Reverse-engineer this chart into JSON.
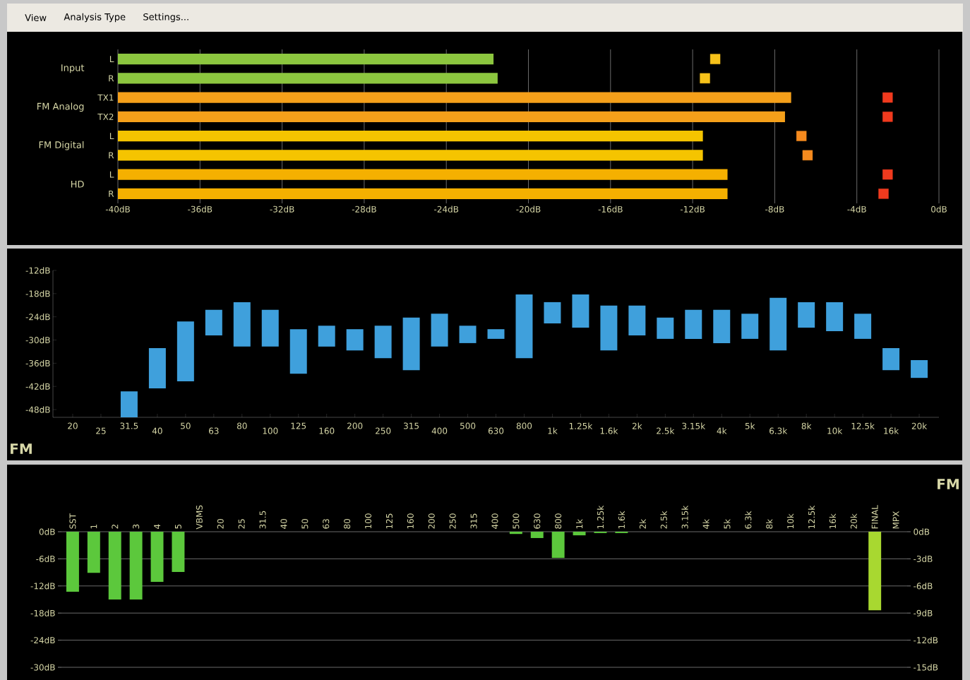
{
  "chart_data": [
    {
      "type": "other",
      "annotations": [
        "View",
        "Analysis Type",
        "Settings..."
      ]
    },
    {
      "type": "bar",
      "orientation": "horizontal",
      "categories": [
        "L",
        "R",
        "TX1",
        "TX2",
        "L",
        "R",
        "L",
        "R"
      ],
      "series": [
        {
          "type": "bar",
          "colors": [
            "#8cc63f",
            "#8cc63f",
            "#f5a01a",
            "#f5a01a",
            "#f5c400",
            "#f5c400",
            "#f5b000",
            "#f5b000"
          ],
          "base": [
            -40,
            -40,
            -40,
            -40,
            -40,
            -40,
            -40,
            -40
          ],
          "values": [
            18.3,
            18.5,
            32.8,
            32.5,
            28.5,
            28.5,
            29.7,
            29.7
          ]
        },
        {
          "type": "scatter",
          "colors": [
            "#f7c21a",
            "#f7c21a",
            "#f03a1e",
            "#f03a1e",
            "#f58a1e",
            "#f58a1e",
            "#f03a1e",
            "#f03a1e"
          ],
          "values": [
            -10.9,
            -11.4,
            -2.5,
            -2.5,
            -6.7,
            -6.4,
            -2.5,
            -2.7
          ]
        }
      ],
      "marker": "square",
      "xlim": [
        -40,
        0
      ],
      "xticks": [
        {
          "value": -40,
          "label": "-40dB"
        },
        {
          "value": -36,
          "label": "-36dB"
        },
        {
          "value": -32,
          "label": "-32dB"
        },
        {
          "value": -28,
          "label": "-28dB"
        },
        {
          "value": -24,
          "label": "-24dB"
        },
        {
          "value": -20,
          "label": "-20dB"
        },
        {
          "value": -16,
          "label": "-16dB"
        },
        {
          "value": -12,
          "label": "-12dB"
        },
        {
          "value": -8,
          "label": "-8dB"
        },
        {
          "value": -4,
          "label": "-4dB"
        },
        {
          "value": 0,
          "label": "0dB"
        }
      ],
      "grid": "x",
      "annotations": [
        "Input",
        "FM Analog",
        "FM Digital",
        "HD"
      ]
    },
    {
      "type": "bar",
      "categories": [
        "20",
        "25",
        "31.5",
        "40",
        "50",
        "63",
        "80",
        "100",
        "125",
        "160",
        "200",
        "250",
        "315",
        "400",
        "500",
        "630",
        "800",
        "1k",
        "1.25k",
        "1.6k",
        "2k",
        "2.5k",
        "3.15k",
        "4k",
        "5k",
        "6.3k",
        "8k",
        "10k",
        "12.5k",
        "16k",
        "20k"
      ],
      "base": [
        null,
        null,
        -50,
        -42.5,
        -40.7,
        -28.8,
        -31.7,
        -31.7,
        -38.7,
        -31.7,
        -32.7,
        -34.7,
        -37.8,
        -31.7,
        -30.8,
        -29.7,
        -34.7,
        -25.7,
        -26.8,
        -32.7,
        -28.8,
        -29.7,
        -29.7,
        -30.8,
        -29.7,
        -32.7,
        -26.8,
        -27.7,
        -29.7,
        -37.8,
        -39.8
      ],
      "values": [
        null,
        null,
        6.7,
        10.4,
        15.5,
        6.6,
        11.5,
        9.5,
        11.5,
        5.4,
        5.5,
        8.4,
        13.6,
        8.5,
        4.5,
        2.5,
        16.5,
        5.5,
        8.6,
        11.6,
        7.7,
        5.5,
        7.5,
        8.6,
        6.5,
        13.6,
        6.6,
        7.5,
        6.5,
        5.7,
        4.6
      ],
      "color": "#3fa0dc",
      "ylim": [
        -50,
        -12
      ],
      "yticks": [
        {
          "value": -12,
          "label": "-12dB"
        },
        {
          "value": -18,
          "label": "-18dB"
        },
        {
          "value": -24,
          "label": "-24dB"
        },
        {
          "value": -30,
          "label": "-30dB"
        },
        {
          "value": -36,
          "label": "-36dB"
        },
        {
          "value": -42,
          "label": "-42dB"
        },
        {
          "value": -48,
          "label": "-48dB"
        }
      ],
      "annotations": [
        "FM"
      ]
    },
    {
      "type": "bar",
      "categories": [
        "SST",
        "1",
        "2",
        "3",
        "4",
        "5",
        "VBMS",
        "20",
        "25",
        "31.5",
        "40",
        "50",
        "63",
        "80",
        "100",
        "125",
        "160",
        "200",
        "250",
        "315",
        "400",
        "500",
        "630",
        "800",
        "1k",
        "1.25k",
        "1.6k",
        "2k",
        "2.5k",
        "3.15k",
        "4k",
        "5k",
        "6.3k",
        "8k",
        "10k",
        "12.5k",
        "16k",
        "20k",
        "FINAL",
        "MPX"
      ],
      "series": [
        {
          "color": "#5cc83c",
          "values": [
            -13.3,
            -9.1,
            -15,
            -15,
            -11.1,
            -8.9,
            0,
            0,
            0,
            0,
            0,
            0,
            0,
            0,
            0,
            0,
            0,
            0,
            0,
            0,
            0,
            -0.5,
            -1.4,
            -5.8,
            -0.8,
            -0.3,
            -0.3,
            0,
            0,
            0,
            0,
            0,
            0,
            0,
            0,
            0,
            0,
            0,
            null,
            null
          ]
        },
        {
          "color": "#a8d830",
          "axis": "y2",
          "values": [
            null,
            null,
            null,
            null,
            null,
            null,
            null,
            null,
            null,
            null,
            null,
            null,
            null,
            null,
            null,
            null,
            null,
            null,
            null,
            null,
            null,
            null,
            null,
            null,
            null,
            null,
            null,
            null,
            null,
            null,
            null,
            null,
            null,
            null,
            null,
            null,
            null,
            null,
            -8.7,
            0
          ]
        }
      ],
      "ylim": [
        -30,
        0
      ],
      "y2lim": [
        -15,
        0
      ],
      "yticks": [
        {
          "value": 0,
          "label": "0dB"
        },
        {
          "value": -6,
          "label": "-6dB"
        },
        {
          "value": -12,
          "label": "-12dB"
        },
        {
          "value": -18,
          "label": "-18dB"
        },
        {
          "value": -24,
          "label": "-24dB"
        },
        {
          "value": -30,
          "label": "-30dB"
        }
      ],
      "y2ticks": [
        {
          "value": 0,
          "label": "0dB"
        },
        {
          "value": -3,
          "label": "-3dB"
        },
        {
          "value": -6,
          "label": "-6dB"
        },
        {
          "value": -9,
          "label": "-9dB"
        },
        {
          "value": -12,
          "label": "-12dB"
        },
        {
          "value": -15,
          "label": "-15dB"
        }
      ],
      "grid": "y",
      "annotations": [
        "FM"
      ]
    }
  ]
}
